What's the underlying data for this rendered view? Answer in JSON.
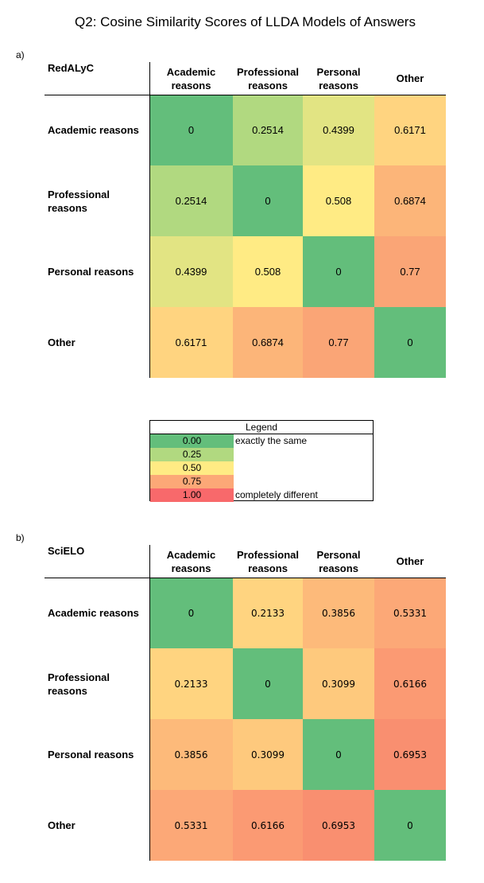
{
  "title": "Q2: Cosine Similarity Scores of LLDA Models of Answers",
  "legend": {
    "title": "Legend",
    "items": [
      {
        "value": "0.00",
        "desc": "exactly the same",
        "color": "#63be7b"
      },
      {
        "value": "0.25",
        "desc": "",
        "color": "#b1d980"
      },
      {
        "value": "0.50",
        "desc": "",
        "color": "#ffeb84"
      },
      {
        "value": "0.75",
        "desc": "",
        "color": "#fca877"
      },
      {
        "value": "1.00",
        "desc": "completely different",
        "color": "#f8696b"
      }
    ]
  },
  "chart_data": [
    {
      "type": "heatmap",
      "panel": "a)",
      "corner_label": "RedALyC",
      "columns": [
        "Academic reasons",
        "Professional reasons",
        "Personal reasons",
        "Other"
      ],
      "rows": [
        "Academic reasons",
        "Professional reasons",
        "Personal reasons",
        "Other"
      ],
      "values": [
        [
          "0",
          "0.2514",
          "0.4399",
          "0.6171"
        ],
        [
          "0.2514",
          "0",
          "0.508",
          "0.6874"
        ],
        [
          "0.4399",
          "0.508",
          "0",
          "0.77"
        ],
        [
          "0.6171",
          "0.6874",
          "0.77",
          "0"
        ]
      ],
      "colors": [
        [
          "#63be7b",
          "#b1d980",
          "#e2e483",
          "#ffd480"
        ],
        [
          "#b1d980",
          "#63be7b",
          "#ffeb84",
          "#fcb579"
        ],
        [
          "#e2e483",
          "#ffeb84",
          "#63be7b",
          "#faa576"
        ],
        [
          "#ffd480",
          "#fcb579",
          "#faa576",
          "#63be7b"
        ]
      ]
    },
    {
      "type": "heatmap",
      "panel": "b)",
      "corner_label": "SciELO",
      "columns": [
        "Academic reasons",
        "Professional reasons",
        "Personal reasons",
        "Other"
      ],
      "rows": [
        "Academic reasons",
        "Professional reasons",
        "Personal reasons",
        "Other"
      ],
      "values": [
        [
          "0",
          "0.2133",
          "0.3856",
          "0.5331"
        ],
        [
          "0.2133",
          "0",
          "0.3099",
          "0.6166"
        ],
        [
          "0.3856",
          "0.3099",
          "0",
          "0.6953"
        ],
        [
          "0.5331",
          "0.6166",
          "0.6953",
          "0"
        ]
      ],
      "colors": [
        [
          "#63be7b",
          "#ffd480",
          "#fdba7a",
          "#fca877"
        ],
        [
          "#ffd480",
          "#63be7b",
          "#fec97d",
          "#fb9a73"
        ],
        [
          "#fdba7a",
          "#fec97d",
          "#63be7b",
          "#f98f70"
        ],
        [
          "#fca877",
          "#fb9a73",
          "#f98f70",
          "#63be7b"
        ]
      ]
    }
  ]
}
